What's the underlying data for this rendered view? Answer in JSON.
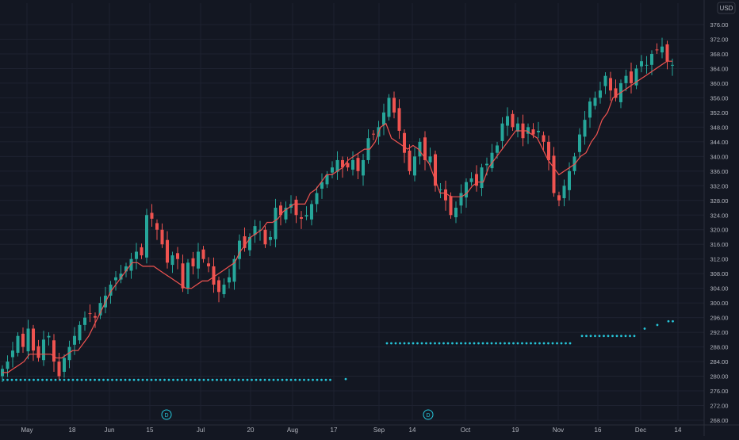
{
  "currency": "USD",
  "colors": {
    "background": "#131722",
    "grid": "#1e2230",
    "up": "#26a69a",
    "down": "#ef5350",
    "ma_line": "#f05350",
    "dots": "#26c6da",
    "axis_text": "#b2b5be",
    "price_tag_bg": "#131722"
  },
  "chart_data": {
    "type": "candlestick",
    "ylim": [
      268,
      376
    ],
    "y_ticks": [
      "268.00",
      "272.00",
      "276.00",
      "280.00",
      "284.00",
      "288.00",
      "292.00",
      "296.00",
      "300.00",
      "304.00",
      "308.00",
      "312.00",
      "316.00",
      "320.00",
      "324.00",
      "328.00",
      "332.00",
      "336.00",
      "340.00",
      "344.00",
      "348.00",
      "352.00",
      "356.00",
      "360.00",
      "364.00",
      "368.00",
      "372.00",
      "376.00"
    ],
    "x_ticks": [
      "May",
      "18",
      "Jun",
      "15",
      "Jul",
      "20",
      "Aug",
      "17",
      "Sep",
      "14",
      "Oct",
      "19",
      "Nov",
      "16",
      "Dec",
      "14"
    ],
    "event_markers": [
      "D",
      "D"
    ],
    "series": [
      {
        "name": "price",
        "closes": [
          282,
          284,
          287,
          291,
          288,
          293,
          287,
          285,
          290,
          291,
          284,
          280,
          285,
          288,
          291,
          294,
          296,
          297,
          296,
          300,
          302,
          305,
          307,
          308,
          310,
          312,
          314,
          313,
          324,
          323,
          320,
          316,
          311,
          313,
          312,
          304,
          311,
          310,
          314,
          312,
          310,
          305,
          303,
          305,
          307,
          312,
          317,
          315,
          318,
          321,
          320,
          316,
          318,
          326,
          324,
          326,
          327,
          324,
          323,
          324,
          327,
          330,
          333,
          335,
          337,
          339,
          337,
          337,
          339,
          336,
          339,
          345,
          346,
          348,
          352,
          356,
          352,
          347,
          341,
          336,
          340,
          344,
          339,
          340,
          332,
          331,
          328,
          324,
          326,
          330,
          333,
          334,
          332,
          337,
          338,
          341,
          343,
          349,
          351,
          348,
          349,
          345,
          348,
          346,
          347,
          344,
          339,
          330,
          328,
          332,
          336,
          340,
          346,
          350,
          355,
          356,
          358,
          362,
          358,
          356,
          360,
          362,
          360,
          364,
          366,
          365,
          368,
          369,
          370,
          366,
          365
        ]
      },
      {
        "name": "ma",
        "values": [
          281,
          281,
          282,
          283,
          284,
          286,
          286,
          286,
          286,
          286,
          285,
          285,
          286,
          287,
          287,
          289,
          291,
          294,
          297,
          300,
          303,
          305,
          307,
          309,
          311,
          311,
          310,
          310,
          310,
          309,
          308,
          307,
          306,
          305,
          304,
          304,
          305,
          306,
          306,
          307,
          308,
          309,
          310,
          311,
          314,
          316,
          318,
          319,
          320,
          322,
          322,
          323,
          325,
          326,
          327,
          327,
          327,
          330,
          331,
          333,
          335,
          335,
          336,
          337,
          339,
          340,
          341,
          342,
          342,
          344,
          348,
          349,
          345,
          344,
          343,
          342,
          343,
          342,
          340,
          338,
          334,
          330,
          330,
          329,
          329,
          329,
          330,
          332,
          333,
          333,
          337,
          339,
          341,
          343,
          345,
          347,
          347,
          347,
          346,
          345,
          342,
          339,
          337,
          335,
          336,
          337,
          338,
          340,
          341,
          344,
          346,
          350,
          352,
          356,
          357,
          358,
          359,
          360,
          361,
          362,
          363,
          364,
          365,
          366,
          366
        ]
      },
      {
        "name": "dots_1",
        "values": [
          279
        ]
      },
      {
        "name": "dots_2",
        "values": [
          289
        ]
      },
      {
        "name": "dots_3",
        "values": [
          291,
          293,
          294,
          295
        ]
      }
    ]
  }
}
